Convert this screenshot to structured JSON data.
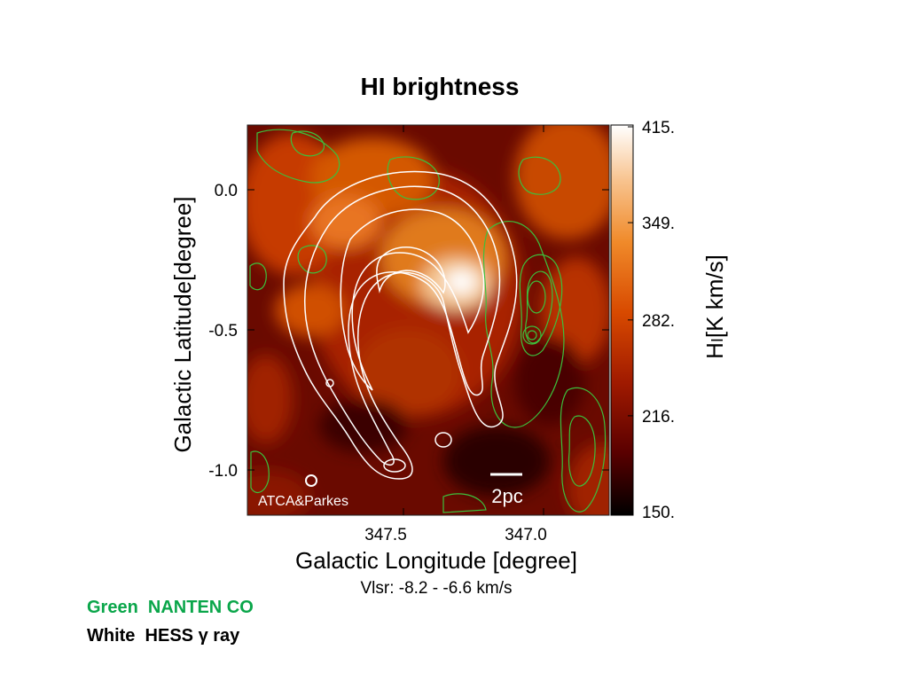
{
  "slide": {
    "title": "HI brightness",
    "legend": {
      "green_text": "Green  NANTEN CO",
      "white_prefix": "White  HESS ",
      "white_symbol": "γ",
      "white_suffix": " ray",
      "green_color": "#0aa64a"
    }
  },
  "chart_data": {
    "type": "heatmap",
    "title": "HI brightness",
    "xlabel": "Galactic Longitude [degree]",
    "ylabel": "Galactic Latitude[degree]",
    "x_ticks": [
      "347.5",
      "347.0"
    ],
    "x_tick_values": [
      347.5,
      347.0
    ],
    "y_ticks": [
      "0.0",
      "-0.5",
      "-1.0"
    ],
    "y_tick_values": [
      0.0,
      -0.5,
      -1.0
    ],
    "colorbar": {
      "label_main": "H",
      "label_roman": "I",
      "label_unit": "[K km/s]",
      "ticks": [
        "415.",
        "349.",
        "282.",
        "216.",
        "150."
      ],
      "tick_values": [
        415,
        349,
        282,
        216,
        150
      ],
      "range": [
        150,
        415
      ]
    },
    "annotations": {
      "source": "ATCA&Parkes",
      "scale_bar": "2pc",
      "velocity_range": "Vlsr: -8.2 - -6.6 km/s"
    },
    "overlays": [
      {
        "name": "NANTEN CO",
        "color": "#3cc03c"
      },
      {
        "name": "HESS γ ray",
        "color": "#ffffff"
      }
    ],
    "colormap": [
      "#000000",
      "#5a0000",
      "#a01a00",
      "#d84a00",
      "#f08a2a",
      "#f8c490",
      "#ffffff"
    ]
  }
}
